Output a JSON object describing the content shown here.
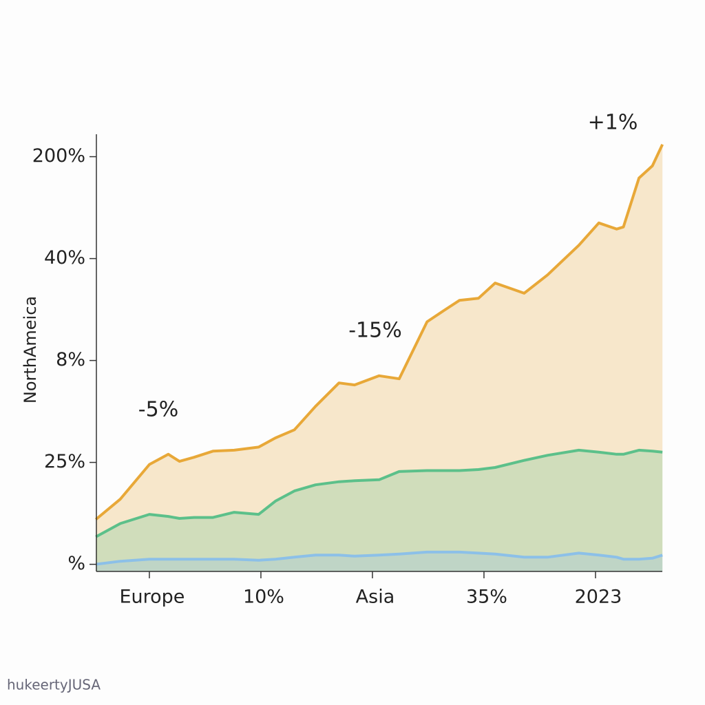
{
  "chart_data": {
    "type": "area",
    "y_label": "NorthAmeica",
    "annotations": [
      "-5%",
      "-15%",
      "+1%"
    ],
    "watermark": "hukeertyJUSA",
    "x": [
      -0.48,
      -0.26,
      0,
      0.17,
      0.27,
      0.4,
      0.57,
      0.76,
      0.98,
      1.13,
      1.3,
      1.49,
      1.7,
      1.84,
      2.06,
      2.24,
      2.49,
      2.64,
      2.78,
      2.95,
      3.1,
      3.36,
      3.57,
      3.85,
      4.03,
      4.19,
      4.25,
      4.39,
      4.51,
      4.6
    ],
    "series": [
      {
        "color": "#e8a838",
        "values": [
          0.44,
          0.64,
          0.98,
          1.08,
          1.01,
          1.05,
          1.11,
          1.12,
          1.15,
          1.24,
          1.32,
          1.55,
          1.78,
          1.76,
          1.85,
          1.82,
          2.38,
          2.49,
          2.59,
          2.61,
          2.76,
          2.66,
          2.84,
          3.13,
          3.35,
          3.29,
          3.31,
          3.79,
          3.91,
          4.12
        ]
      },
      {
        "color": "#5cc08a",
        "values": [
          0.27,
          0.4,
          0.49,
          0.47,
          0.45,
          0.46,
          0.46,
          0.51,
          0.49,
          0.62,
          0.72,
          0.78,
          0.81,
          0.82,
          0.83,
          0.91,
          0.92,
          0.92,
          0.92,
          0.93,
          0.95,
          1.02,
          1.07,
          1.12,
          1.1,
          1.08,
          1.08,
          1.12,
          1.11,
          1.1
        ]
      },
      {
        "color": "#8cc0e8",
        "values": [
          0,
          0.03,
          0.05,
          0.05,
          0.05,
          0.05,
          0.05,
          0.05,
          0.04,
          0.05,
          0.07,
          0.09,
          0.09,
          0.08,
          0.09,
          0.1,
          0.12,
          0.12,
          0.12,
          0.11,
          0.1,
          0.07,
          0.07,
          0.11,
          0.09,
          0.07,
          0.05,
          0.05,
          0.06,
          0.09
        ]
      }
    ],
    "xlim": [
      -0.475,
      4.599
    ],
    "xticks": [
      {
        "value": 0,
        "label": "Europe"
      },
      {
        "value": 1,
        "label": "10%"
      },
      {
        "value": 2,
        "label": "Asia"
      },
      {
        "value": 3,
        "label": "35%"
      },
      {
        "value": 4,
        "label": "2023"
      }
    ],
    "ylim": [
      -0.07,
      4.22
    ],
    "yticks": [
      {
        "value": 0,
        "label": "%"
      },
      {
        "value": 1,
        "label": "25%"
      },
      {
        "value": 2,
        "label": "8%"
      },
      {
        "value": 3,
        "label": "40%"
      },
      {
        "value": 4,
        "label": "200%"
      }
    ]
  }
}
